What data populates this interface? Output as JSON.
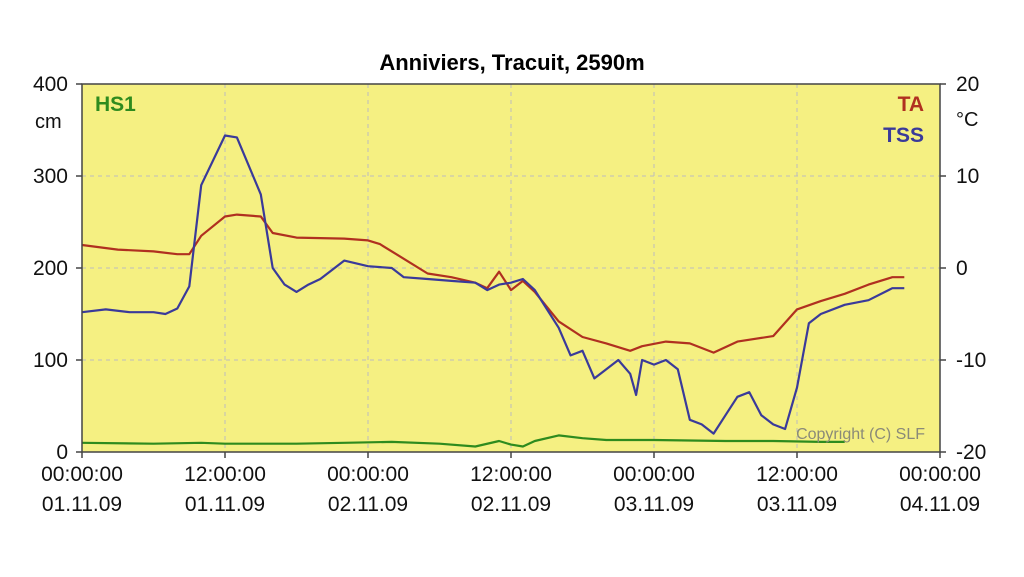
{
  "chart_data": {
    "type": "line",
    "title": "Anniviers, Tracuit, 2590m",
    "copyright": "Copyright (C) SLF",
    "left_axis": {
      "unit_label": "cm",
      "ylim": [
        0,
        400
      ],
      "ticks": [
        {
          "value": 400,
          "label": "400"
        },
        {
          "value": 300,
          "label": "300"
        },
        {
          "value": 200,
          "label": "200"
        },
        {
          "value": 100,
          "label": "100"
        },
        {
          "value": 0,
          "label": "0"
        }
      ]
    },
    "right_axis": {
      "unit_label": "°C",
      "ylim": [
        -20,
        20
      ],
      "ticks": [
        {
          "value": 20,
          "label": "20"
        },
        {
          "value": 10,
          "label": "10"
        },
        {
          "value": 0,
          "label": "0"
        },
        {
          "value": -10,
          "label": "-10"
        },
        {
          "value": -20,
          "label": "-20"
        }
      ]
    },
    "x_axis": {
      "xlim": [
        0,
        72
      ],
      "unit": "hours since 00:00:00 01.11.09",
      "ticks": [
        {
          "value": 0,
          "time": "00:00:00",
          "date": "01.11.09"
        },
        {
          "value": 12,
          "time": "12:00:00",
          "date": "01.11.09"
        },
        {
          "value": 24,
          "time": "00:00:00",
          "date": "02.11.09"
        },
        {
          "value": 36,
          "time": "12:00:00",
          "date": "02.11.09"
        },
        {
          "value": 48,
          "time": "00:00:00",
          "date": "03.11.09"
        },
        {
          "value": 60,
          "time": "12:00:00",
          "date": "03.11.09"
        },
        {
          "value": 72,
          "time": "00:00:00",
          "date": "04.11.09"
        }
      ]
    },
    "grid": true,
    "colors": {
      "plot_background": "#f5f082",
      "grid": "#bdbdbd"
    },
    "series": [
      {
        "name": "HS1",
        "axis": "left",
        "color": "#2e8b1e",
        "legend_position": "top-left",
        "points": [
          [
            0,
            10
          ],
          [
            6,
            9
          ],
          [
            10,
            10
          ],
          [
            12,
            9
          ],
          [
            18,
            9
          ],
          [
            22,
            10
          ],
          [
            26,
            11
          ],
          [
            30,
            9
          ],
          [
            33,
            6
          ],
          [
            35,
            12
          ],
          [
            36,
            8
          ],
          [
            37,
            6
          ],
          [
            38,
            12
          ],
          [
            40,
            18
          ],
          [
            42,
            15
          ],
          [
            44,
            13
          ],
          [
            48,
            13
          ],
          [
            54,
            12
          ],
          [
            58,
            12
          ],
          [
            62,
            11
          ],
          [
            64,
            11
          ]
        ]
      },
      {
        "name": "TA",
        "axis": "right",
        "color": "#b03020",
        "legend_position": "top-right",
        "points": [
          [
            0,
            2.5
          ],
          [
            3,
            2.0
          ],
          [
            6,
            1.8
          ],
          [
            8,
            1.5
          ],
          [
            9,
            1.5
          ],
          [
            10,
            3.5
          ],
          [
            12,
            5.6
          ],
          [
            13,
            5.8
          ],
          [
            15,
            5.6
          ],
          [
            16,
            3.8
          ],
          [
            18,
            3.3
          ],
          [
            22,
            3.2
          ],
          [
            24,
            3.0
          ],
          [
            25,
            2.6
          ],
          [
            27,
            1.0
          ],
          [
            29,
            -0.6
          ],
          [
            31,
            -1.0
          ],
          [
            33,
            -1.6
          ],
          [
            34,
            -2.2
          ],
          [
            35,
            -0.4
          ],
          [
            36,
            -2.4
          ],
          [
            37,
            -1.4
          ],
          [
            38,
            -2.6
          ],
          [
            40,
            -5.8
          ],
          [
            42,
            -7.5
          ],
          [
            44,
            -8.2
          ],
          [
            46,
            -9.0
          ],
          [
            47,
            -8.5
          ],
          [
            49,
            -8.0
          ],
          [
            51,
            -8.2
          ],
          [
            53,
            -9.2
          ],
          [
            55,
            -8.0
          ],
          [
            58,
            -7.4
          ],
          [
            60,
            -4.5
          ],
          [
            62,
            -3.6
          ],
          [
            64,
            -2.8
          ],
          [
            66,
            -1.8
          ],
          [
            68,
            -1.0
          ],
          [
            69,
            -1.0
          ]
        ]
      },
      {
        "name": "TSS",
        "axis": "right",
        "color": "#3a3a9a",
        "legend_position": "top-right",
        "points": [
          [
            0,
            -4.8
          ],
          [
            2,
            -4.5
          ],
          [
            4,
            -4.8
          ],
          [
            6,
            -4.8
          ],
          [
            7,
            -5.0
          ],
          [
            8,
            -4.4
          ],
          [
            9,
            -2.0
          ],
          [
            10,
            9.0
          ],
          [
            12,
            14.4
          ],
          [
            13,
            14.2
          ],
          [
            15,
            8.0
          ],
          [
            16,
            0.0
          ],
          [
            17,
            -1.8
          ],
          [
            18,
            -2.6
          ],
          [
            19,
            -1.8
          ],
          [
            20,
            -1.2
          ],
          [
            22,
            0.8
          ],
          [
            24,
            0.2
          ],
          [
            26,
            0.0
          ],
          [
            27,
            -1.0
          ],
          [
            29,
            -1.2
          ],
          [
            31,
            -1.4
          ],
          [
            33,
            -1.6
          ],
          [
            34,
            -2.4
          ],
          [
            35,
            -1.8
          ],
          [
            36,
            -1.6
          ],
          [
            37,
            -1.2
          ],
          [
            38,
            -2.4
          ],
          [
            40,
            -6.5
          ],
          [
            41,
            -9.5
          ],
          [
            42,
            -9.0
          ],
          [
            43,
            -12.0
          ],
          [
            44,
            -11.0
          ],
          [
            45,
            -10.0
          ],
          [
            46,
            -11.5
          ],
          [
            46.5,
            -13.8
          ],
          [
            47,
            -10.0
          ],
          [
            48,
            -10.5
          ],
          [
            49,
            -10.0
          ],
          [
            50,
            -11.0
          ],
          [
            51,
            -16.5
          ],
          [
            52,
            -17.0
          ],
          [
            53,
            -18.0
          ],
          [
            54,
            -16.0
          ],
          [
            55,
            -14.0
          ],
          [
            56,
            -13.5
          ],
          [
            57,
            -16.0
          ],
          [
            58,
            -17.0
          ],
          [
            59,
            -17.5
          ],
          [
            60,
            -13.0
          ],
          [
            61,
            -6.0
          ],
          [
            62,
            -5.0
          ],
          [
            64,
            -4.0
          ],
          [
            66,
            -3.5
          ],
          [
            68,
            -2.2
          ],
          [
            69,
            -2.2
          ]
        ]
      }
    ]
  }
}
